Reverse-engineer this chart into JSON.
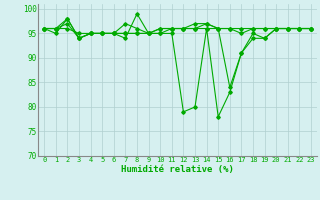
{
  "title": "",
  "xlabel": "Humidité relative (%)",
  "ylabel": "",
  "xlim": [
    -0.5,
    23.5
  ],
  "ylim": [
    70,
    101
  ],
  "yticks": [
    70,
    75,
    80,
    85,
    90,
    95,
    100
  ],
  "xticks": [
    0,
    1,
    2,
    3,
    4,
    5,
    6,
    7,
    8,
    9,
    10,
    11,
    12,
    13,
    14,
    15,
    16,
    17,
    18,
    19,
    20,
    21,
    22,
    23
  ],
  "background_color": "#d6f0f0",
  "grid_color": "#b0d0d0",
  "line_color": "#00aa00",
  "series": [
    [
      96,
      95,
      98,
      94,
      95,
      95,
      95,
      94,
      99,
      95,
      95,
      95,
      79,
      80,
      96,
      78,
      83,
      91,
      94,
      94,
      96,
      96,
      96,
      96
    ],
    [
      96,
      96,
      98,
      94,
      95,
      95,
      95,
      97,
      96,
      95,
      96,
      96,
      96,
      96,
      97,
      96,
      84,
      91,
      95,
      94,
      96,
      96,
      96,
      96
    ],
    [
      96,
      96,
      97,
      94,
      95,
      95,
      95,
      95,
      95,
      95,
      96,
      96,
      96,
      97,
      97,
      96,
      96,
      95,
      96,
      96,
      96,
      96,
      96,
      96
    ],
    [
      96,
      96,
      96,
      95,
      95,
      95,
      95,
      95,
      95,
      95,
      95,
      96,
      96,
      96,
      96,
      96,
      96,
      96,
      96,
      96,
      96,
      96,
      96,
      96
    ]
  ]
}
